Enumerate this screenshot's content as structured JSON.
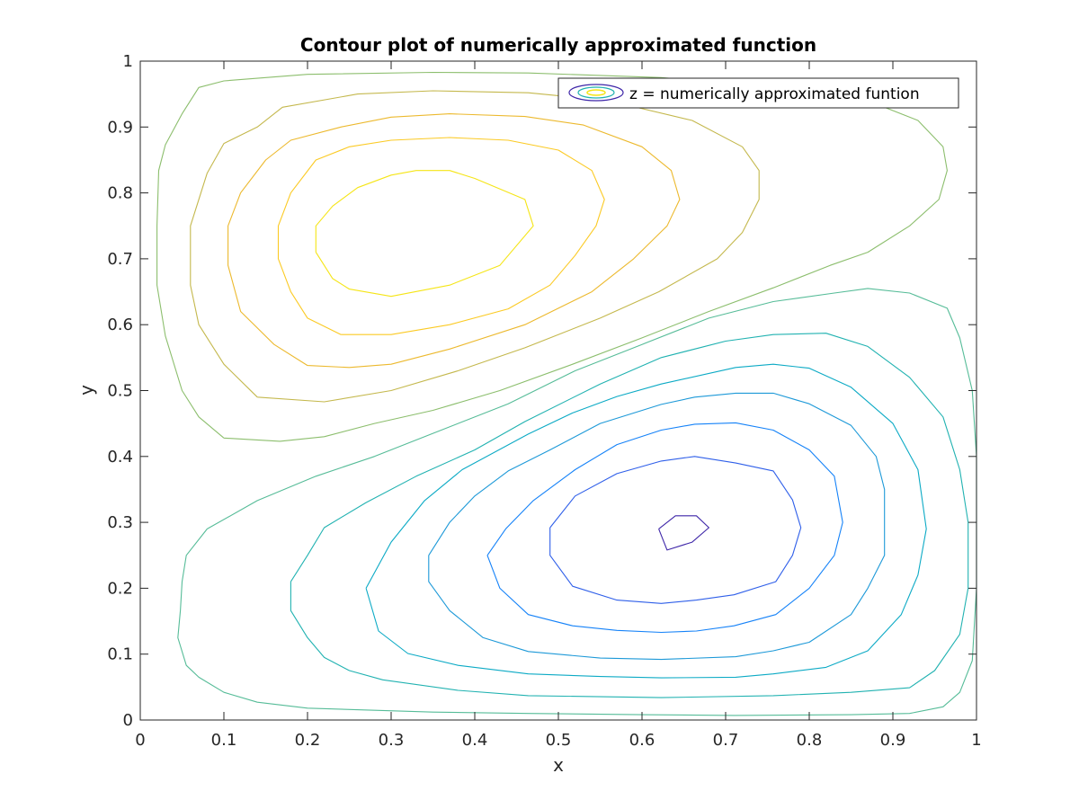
{
  "chart_data": {
    "type": "contour",
    "title": "Contour plot of numerically approximated function",
    "xlabel": "x",
    "ylabel": "y",
    "xlim": [
      0,
      1
    ],
    "ylim": [
      0,
      1
    ],
    "xticks": [
      "0",
      "0.1",
      "0.2",
      "0.3",
      "0.4",
      "0.5",
      "0.6",
      "0.7",
      "0.8",
      "0.9",
      "1"
    ],
    "yticks": [
      "0",
      "0.1",
      "0.2",
      "0.3",
      "0.4",
      "0.5",
      "0.6",
      "0.7",
      "0.8",
      "0.9",
      "1"
    ],
    "grid": false,
    "box": true,
    "legend": {
      "location": "top-right",
      "entries": [
        "z = numerically approximated funtion"
      ]
    },
    "colormap": "parula",
    "levels": [
      {
        "color": "#3e26a8",
        "points": [
          [
            0.62,
            0.29
          ],
          [
            0.64,
            0.31
          ],
          [
            0.665,
            0.31
          ],
          [
            0.68,
            0.292
          ],
          [
            0.66,
            0.27
          ],
          [
            0.63,
            0.258
          ],
          [
            0.62,
            0.29
          ]
        ]
      },
      {
        "color": "#2f5fe9",
        "points": [
          [
            0.49,
            0.292
          ],
          [
            0.52,
            0.34
          ],
          [
            0.57,
            0.374
          ],
          [
            0.623,
            0.393
          ],
          [
            0.663,
            0.4
          ],
          [
            0.712,
            0.39
          ],
          [
            0.757,
            0.378
          ],
          [
            0.78,
            0.334
          ],
          [
            0.79,
            0.292
          ],
          [
            0.78,
            0.25
          ],
          [
            0.76,
            0.21
          ],
          [
            0.71,
            0.19
          ],
          [
            0.665,
            0.182
          ],
          [
            0.623,
            0.177
          ],
          [
            0.57,
            0.182
          ],
          [
            0.517,
            0.203
          ],
          [
            0.49,
            0.25
          ],
          [
            0.49,
            0.292
          ]
        ]
      },
      {
        "color": "#1582f8",
        "points": [
          [
            0.415,
            0.25
          ],
          [
            0.437,
            0.29
          ],
          [
            0.47,
            0.333
          ],
          [
            0.52,
            0.38
          ],
          [
            0.57,
            0.418
          ],
          [
            0.623,
            0.44
          ],
          [
            0.663,
            0.449
          ],
          [
            0.712,
            0.451
          ],
          [
            0.757,
            0.44
          ],
          [
            0.8,
            0.41
          ],
          [
            0.83,
            0.37
          ],
          [
            0.84,
            0.3
          ],
          [
            0.83,
            0.25
          ],
          [
            0.8,
            0.2
          ],
          [
            0.76,
            0.16
          ],
          [
            0.71,
            0.143
          ],
          [
            0.665,
            0.135
          ],
          [
            0.623,
            0.133
          ],
          [
            0.57,
            0.136
          ],
          [
            0.517,
            0.143
          ],
          [
            0.464,
            0.16
          ],
          [
            0.43,
            0.2
          ],
          [
            0.415,
            0.25
          ]
        ]
      },
      {
        "color": "#1d99d8",
        "points": [
          [
            0.345,
            0.25
          ],
          [
            0.37,
            0.3
          ],
          [
            0.4,
            0.34
          ],
          [
            0.44,
            0.378
          ],
          [
            0.49,
            0.41
          ],
          [
            0.55,
            0.45
          ],
          [
            0.623,
            0.479
          ],
          [
            0.663,
            0.49
          ],
          [
            0.712,
            0.496
          ],
          [
            0.757,
            0.496
          ],
          [
            0.8,
            0.48
          ],
          [
            0.85,
            0.447
          ],
          [
            0.88,
            0.4
          ],
          [
            0.89,
            0.35
          ],
          [
            0.89,
            0.25
          ],
          [
            0.87,
            0.2
          ],
          [
            0.85,
            0.16
          ],
          [
            0.8,
            0.118
          ],
          [
            0.757,
            0.105
          ],
          [
            0.712,
            0.096
          ],
          [
            0.623,
            0.092
          ],
          [
            0.55,
            0.094
          ],
          [
            0.464,
            0.104
          ],
          [
            0.41,
            0.125
          ],
          [
            0.37,
            0.166
          ],
          [
            0.345,
            0.21
          ],
          [
            0.345,
            0.25
          ]
        ]
      },
      {
        "color": "#0caac5",
        "points": [
          [
            0.27,
            0.2
          ],
          [
            0.3,
            0.27
          ],
          [
            0.34,
            0.333
          ],
          [
            0.385,
            0.38
          ],
          [
            0.464,
            0.434
          ],
          [
            0.517,
            0.466
          ],
          [
            0.57,
            0.491
          ],
          [
            0.623,
            0.51
          ],
          [
            0.712,
            0.535
          ],
          [
            0.757,
            0.54
          ],
          [
            0.8,
            0.534
          ],
          [
            0.85,
            0.505
          ],
          [
            0.9,
            0.45
          ],
          [
            0.93,
            0.38
          ],
          [
            0.94,
            0.29
          ],
          [
            0.93,
            0.22
          ],
          [
            0.91,
            0.16
          ],
          [
            0.87,
            0.105
          ],
          [
            0.82,
            0.08
          ],
          [
            0.757,
            0.07
          ],
          [
            0.712,
            0.065
          ],
          [
            0.623,
            0.064
          ],
          [
            0.55,
            0.066
          ],
          [
            0.464,
            0.07
          ],
          [
            0.38,
            0.083
          ],
          [
            0.32,
            0.101
          ],
          [
            0.285,
            0.135
          ],
          [
            0.27,
            0.2
          ]
        ]
      },
      {
        "color": "#21b2b1",
        "points": [
          [
            0.18,
            0.21
          ],
          [
            0.2,
            0.25
          ],
          [
            0.22,
            0.292
          ],
          [
            0.27,
            0.33
          ],
          [
            0.33,
            0.37
          ],
          [
            0.4,
            0.41
          ],
          [
            0.46,
            0.453
          ],
          [
            0.55,
            0.51
          ],
          [
            0.623,
            0.55
          ],
          [
            0.7,
            0.575
          ],
          [
            0.757,
            0.585
          ],
          [
            0.82,
            0.587
          ],
          [
            0.87,
            0.567
          ],
          [
            0.92,
            0.52
          ],
          [
            0.96,
            0.46
          ],
          [
            0.98,
            0.38
          ],
          [
            0.99,
            0.3
          ],
          [
            0.99,
            0.2
          ],
          [
            0.98,
            0.13
          ],
          [
            0.95,
            0.075
          ],
          [
            0.92,
            0.049
          ],
          [
            0.85,
            0.042
          ],
          [
            0.757,
            0.037
          ],
          [
            0.623,
            0.034
          ],
          [
            0.464,
            0.037
          ],
          [
            0.38,
            0.045
          ],
          [
            0.29,
            0.061
          ],
          [
            0.25,
            0.075
          ],
          [
            0.22,
            0.095
          ],
          [
            0.2,
            0.125
          ],
          [
            0.18,
            0.166
          ],
          [
            0.18,
            0.21
          ]
        ]
      },
      {
        "color": "#56bc98",
        "points": [
          [
            0.08,
            0.29
          ],
          [
            0.14,
            0.333
          ],
          [
            0.21,
            0.37
          ],
          [
            0.28,
            0.4
          ],
          [
            0.35,
            0.435
          ],
          [
            0.44,
            0.48
          ],
          [
            0.52,
            0.53
          ],
          [
            0.6,
            0.57
          ],
          [
            0.68,
            0.61
          ],
          [
            0.757,
            0.635
          ],
          [
            0.83,
            0.648
          ],
          [
            0.87,
            0.655
          ],
          [
            0.92,
            0.648
          ],
          [
            0.965,
            0.625
          ],
          [
            0.98,
            0.58
          ],
          [
            0.995,
            0.5
          ],
          [
            1.0,
            0.4
          ],
          [
            1.0,
            0.29
          ],
          [
            1.0,
            0.2
          ],
          [
            0.995,
            0.09
          ],
          [
            0.98,
            0.042
          ],
          [
            0.96,
            0.02
          ],
          [
            0.92,
            0.01
          ],
          [
            0.85,
            0.008
          ],
          [
            0.71,
            0.007
          ],
          [
            0.6,
            0.008
          ],
          [
            0.464,
            0.01
          ],
          [
            0.35,
            0.012
          ],
          [
            0.2,
            0.018
          ],
          [
            0.14,
            0.027
          ],
          [
            0.1,
            0.042
          ],
          [
            0.07,
            0.065
          ],
          [
            0.055,
            0.083
          ],
          [
            0.045,
            0.125
          ],
          [
            0.048,
            0.166
          ],
          [
            0.05,
            0.21
          ],
          [
            0.055,
            0.25
          ],
          [
            0.08,
            0.29
          ]
        ]
      },
      {
        "color": "#8cbe6d",
        "points": [
          [
            0.1,
            0.428
          ],
          [
            0.167,
            0.423
          ],
          [
            0.22,
            0.43
          ],
          [
            0.28,
            0.45
          ],
          [
            0.35,
            0.47
          ],
          [
            0.43,
            0.5
          ],
          [
            0.517,
            0.54
          ],
          [
            0.6,
            0.58
          ],
          [
            0.68,
            0.62
          ],
          [
            0.757,
            0.656
          ],
          [
            0.825,
            0.69
          ],
          [
            0.87,
            0.71
          ],
          [
            0.92,
            0.75
          ],
          [
            0.955,
            0.79
          ],
          [
            0.965,
            0.834
          ],
          [
            0.96,
            0.87
          ],
          [
            0.93,
            0.91
          ],
          [
            0.87,
            0.94
          ],
          [
            0.757,
            0.96
          ],
          [
            0.623,
            0.975
          ],
          [
            0.464,
            0.982
          ],
          [
            0.35,
            0.983
          ],
          [
            0.2,
            0.98
          ],
          [
            0.1,
            0.97
          ],
          [
            0.07,
            0.96
          ],
          [
            0.05,
            0.92
          ],
          [
            0.03,
            0.873
          ],
          [
            0.022,
            0.834
          ],
          [
            0.02,
            0.75
          ],
          [
            0.02,
            0.66
          ],
          [
            0.03,
            0.583
          ],
          [
            0.05,
            0.5
          ],
          [
            0.07,
            0.46
          ],
          [
            0.1,
            0.428
          ]
        ]
      },
      {
        "color": "#c4b84d",
        "points": [
          [
            0.14,
            0.49
          ],
          [
            0.22,
            0.483
          ],
          [
            0.3,
            0.5
          ],
          [
            0.38,
            0.53
          ],
          [
            0.46,
            0.565
          ],
          [
            0.55,
            0.61
          ],
          [
            0.62,
            0.65
          ],
          [
            0.69,
            0.7
          ],
          [
            0.72,
            0.74
          ],
          [
            0.74,
            0.79
          ],
          [
            0.74,
            0.834
          ],
          [
            0.72,
            0.87
          ],
          [
            0.66,
            0.91
          ],
          [
            0.56,
            0.94
          ],
          [
            0.464,
            0.952
          ],
          [
            0.35,
            0.955
          ],
          [
            0.26,
            0.95
          ],
          [
            0.17,
            0.93
          ],
          [
            0.14,
            0.9
          ],
          [
            0.1,
            0.875
          ],
          [
            0.08,
            0.83
          ],
          [
            0.06,
            0.75
          ],
          [
            0.06,
            0.66
          ],
          [
            0.07,
            0.6
          ],
          [
            0.1,
            0.54
          ],
          [
            0.14,
            0.49
          ]
        ]
      },
      {
        "color": "#ecb92e",
        "points": [
          [
            0.2,
            0.538
          ],
          [
            0.25,
            0.535
          ],
          [
            0.3,
            0.54
          ],
          [
            0.37,
            0.563
          ],
          [
            0.46,
            0.6
          ],
          [
            0.54,
            0.65
          ],
          [
            0.59,
            0.7
          ],
          [
            0.63,
            0.75
          ],
          [
            0.645,
            0.79
          ],
          [
            0.635,
            0.834
          ],
          [
            0.6,
            0.87
          ],
          [
            0.53,
            0.903
          ],
          [
            0.46,
            0.916
          ],
          [
            0.37,
            0.92
          ],
          [
            0.3,
            0.915
          ],
          [
            0.24,
            0.9
          ],
          [
            0.18,
            0.88
          ],
          [
            0.15,
            0.85
          ],
          [
            0.12,
            0.8
          ],
          [
            0.105,
            0.75
          ],
          [
            0.105,
            0.69
          ],
          [
            0.12,
            0.62
          ],
          [
            0.16,
            0.57
          ],
          [
            0.2,
            0.538
          ]
        ]
      },
      {
        "color": "#fbca24",
        "points": [
          [
            0.24,
            0.585
          ],
          [
            0.3,
            0.585
          ],
          [
            0.37,
            0.6
          ],
          [
            0.44,
            0.624
          ],
          [
            0.49,
            0.66
          ],
          [
            0.52,
            0.705
          ],
          [
            0.545,
            0.75
          ],
          [
            0.555,
            0.79
          ],
          [
            0.54,
            0.834
          ],
          [
            0.5,
            0.865
          ],
          [
            0.44,
            0.88
          ],
          [
            0.37,
            0.884
          ],
          [
            0.3,
            0.88
          ],
          [
            0.25,
            0.87
          ],
          [
            0.21,
            0.85
          ],
          [
            0.18,
            0.8
          ],
          [
            0.165,
            0.75
          ],
          [
            0.165,
            0.7
          ],
          [
            0.18,
            0.65
          ],
          [
            0.2,
            0.61
          ],
          [
            0.24,
            0.585
          ]
        ]
      },
      {
        "color": "#f5e516",
        "points": [
          [
            0.21,
            0.71
          ],
          [
            0.23,
            0.67
          ],
          [
            0.25,
            0.654
          ],
          [
            0.3,
            0.643
          ],
          [
            0.37,
            0.66
          ],
          [
            0.43,
            0.69
          ],
          [
            0.47,
            0.75
          ],
          [
            0.46,
            0.79
          ],
          [
            0.4,
            0.822
          ],
          [
            0.37,
            0.834
          ],
          [
            0.33,
            0.834
          ],
          [
            0.3,
            0.827
          ],
          [
            0.26,
            0.808
          ],
          [
            0.23,
            0.78
          ],
          [
            0.21,
            0.75
          ],
          [
            0.21,
            0.71
          ]
        ]
      }
    ]
  }
}
